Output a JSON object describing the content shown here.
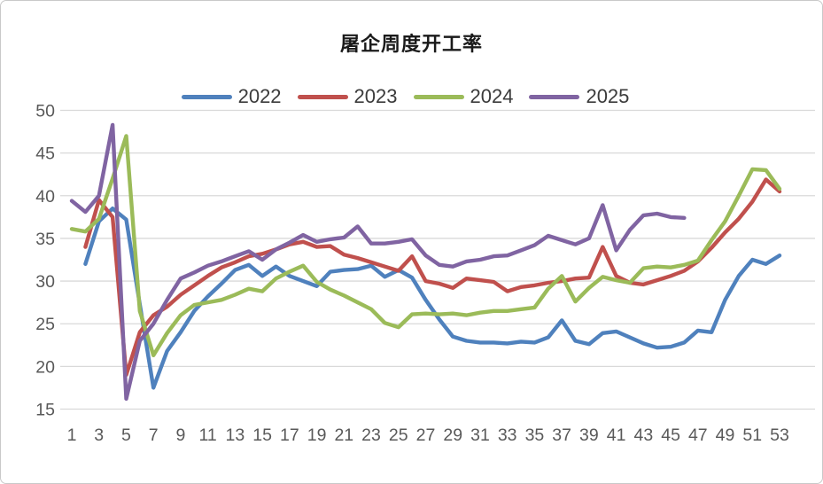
{
  "chart_data": {
    "type": "line",
    "title": "屠企周度开工率",
    "xlabel": "",
    "ylabel": "",
    "ylim": [
      15,
      50
    ],
    "y_ticks": [
      50,
      45,
      40,
      35,
      30,
      25,
      20,
      15
    ],
    "x_label_ticks": [
      1,
      3,
      5,
      7,
      9,
      11,
      13,
      15,
      17,
      19,
      21,
      23,
      25,
      27,
      29,
      31,
      33,
      35,
      37,
      39,
      41,
      43,
      45,
      47,
      49,
      51,
      53
    ],
    "x_range": [
      1,
      53
    ],
    "grid": "horizontal",
    "legend_position": "top-center",
    "colors": {
      "grid": "#d9d9d9",
      "axis_text": "#595959",
      "title_text": "#1a1a1a",
      "card_border": "#c9c9c9"
    },
    "series": [
      {
        "name": "2022",
        "color": "#4F81BD",
        "start_week": 2,
        "values": [
          32,
          37,
          38.5,
          37.2,
          27.3,
          17.5,
          21.8,
          24,
          26.5,
          28.2,
          29.7,
          31.3,
          31.9,
          30.6,
          31.7,
          30.6,
          30,
          29.4,
          31.1,
          31.3,
          31.4,
          31.8,
          30.5,
          31.3,
          30.4,
          27.8,
          25.5,
          23.5,
          23,
          22.8,
          22.8,
          22.7,
          22.9,
          22.8,
          23.4,
          25.4,
          23,
          22.6,
          23.9,
          24.1,
          23.4,
          22.7,
          22.2,
          22.3,
          22.8,
          24.2,
          24,
          27.8,
          30.6,
          32.5,
          32,
          33
        ]
      },
      {
        "name": "2023",
        "color": "#C0504D",
        "start_week": 2,
        "values": [
          34,
          39.5,
          37.5,
          19,
          24,
          26,
          27,
          28.4,
          29.5,
          30.6,
          31.6,
          32.2,
          32.9,
          33.2,
          33.7,
          34.3,
          34.6,
          34,
          34.1,
          33.1,
          32.7,
          32.2,
          31.7,
          31.2,
          32.9,
          30,
          29.7,
          29.2,
          30.3,
          30.1,
          29.9,
          28.8,
          29.3,
          29.5,
          29.8,
          30,
          30.3,
          30.4,
          34,
          30.6,
          29.8,
          29.6,
          30.1,
          30.6,
          31.2,
          32.3,
          33.9,
          35.7,
          37.3,
          39.3,
          41.9,
          40.5
        ]
      },
      {
        "name": "2024",
        "color": "#9BBB59",
        "start_week": 1,
        "values": [
          36.1,
          35.8,
          37.3,
          42,
          47,
          26.5,
          21.3,
          23.9,
          26,
          27.2,
          27.5,
          27.8,
          28.4,
          29.1,
          28.8,
          30.3,
          31.1,
          31.8,
          29.9,
          29,
          28.3,
          27.5,
          26.7,
          25.1,
          24.6,
          26.1,
          26.2,
          26.1,
          26.2,
          26,
          26.3,
          26.5,
          26.5,
          26.7,
          26.9,
          29.1,
          30.6,
          27.6,
          29.2,
          30.5,
          30.1,
          29.8,
          31.5,
          31.7,
          31.6,
          31.9,
          32.4,
          34.8,
          37,
          40,
          43.1,
          43,
          40.8
        ]
      },
      {
        "name": "2025",
        "color": "#8064A2",
        "start_week": 1,
        "values": [
          39.4,
          38.1,
          40,
          48.3,
          16.2,
          23,
          25,
          27.8,
          30.3,
          31,
          31.8,
          32.3,
          32.9,
          33.5,
          32.5,
          33.7,
          34.5,
          35.4,
          34.6,
          34.9,
          35.1,
          36.4,
          34.4,
          34.4,
          34.6,
          34.9,
          33,
          31.9,
          31.7,
          32.3,
          32.5,
          32.9,
          33,
          33.6,
          34.2,
          35.3,
          34.8,
          34.3,
          35,
          38.9,
          33.6,
          36,
          37.7,
          37.9,
          37.5,
          37.4
        ]
      }
    ]
  }
}
